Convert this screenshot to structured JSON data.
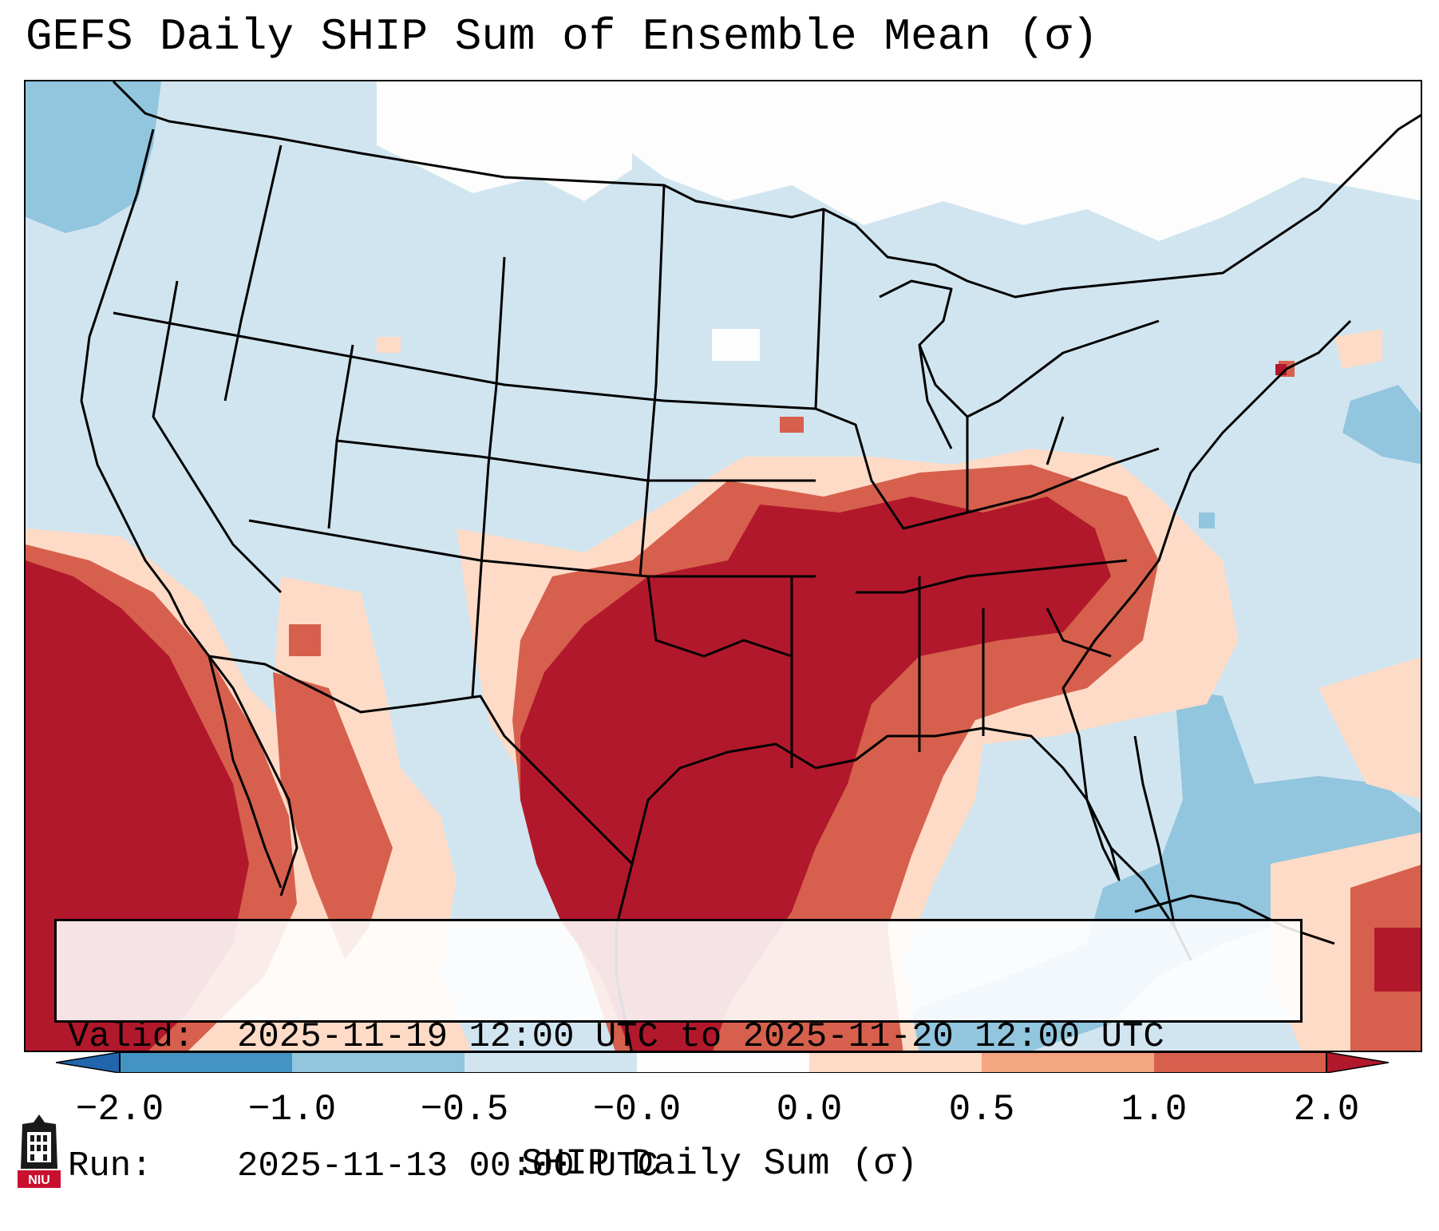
{
  "title": "GEFS Daily SHIP Sum of Ensemble Mean (σ)",
  "map": {
    "region": "Contiguous United States",
    "variable": "SHIP Daily Sum",
    "units": "σ"
  },
  "info": {
    "valid_label": "Valid:",
    "valid_value": "2025-11-19 12:00 UTC to 2025-11-20 12:00 UTC",
    "run_label": "Run:",
    "run_value": "2025-11-13 00:00 UTC"
  },
  "colorbar": {
    "label": "SHIP Daily Sum (σ)",
    "ticks": [
      "−2.0",
      "−1.0",
      "−0.5",
      "−0.0",
      "0.0",
      "0.5",
      "1.0",
      "2.0"
    ],
    "colors": [
      "#2166ac",
      "#4393c3",
      "#92c5de",
      "#d1e5f0",
      "#fdfdfd",
      "#fddbc7",
      "#f4a582",
      "#d6604d",
      "#b2182b"
    ],
    "extend": "both"
  },
  "logo": {
    "text": "NIU",
    "icon": "university-tower-icon"
  }
}
